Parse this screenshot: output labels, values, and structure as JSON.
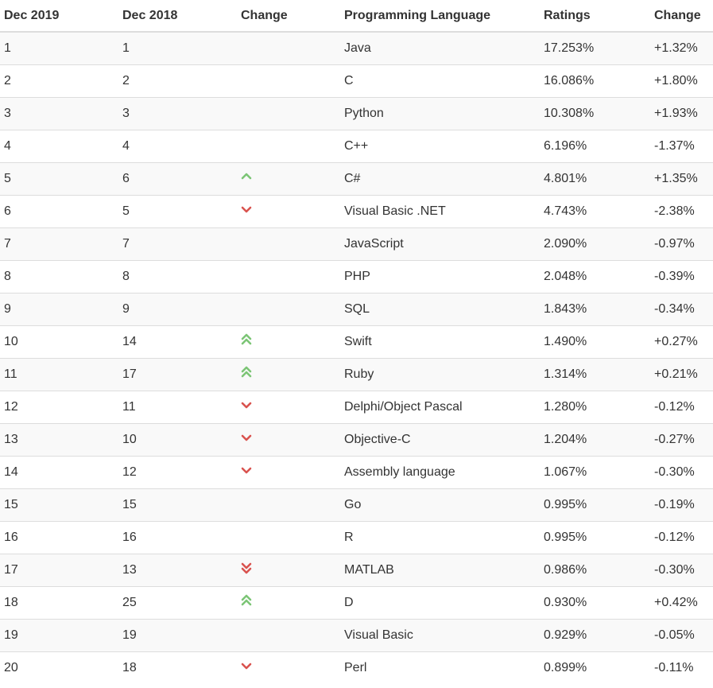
{
  "headers": [
    "Dec 2019",
    "Dec 2018",
    "Change",
    "Programming Language",
    "Ratings",
    "Change"
  ],
  "colors": {
    "up": "#7cc576",
    "down": "#d9534f",
    "row_alt": "#f9f9f9",
    "border": "#dddddd"
  },
  "rows": [
    {
      "rank2019": "1",
      "rank2018": "1",
      "trend": "none",
      "language": "Java",
      "rating": "17.253%",
      "change": "+1.32%"
    },
    {
      "rank2019": "2",
      "rank2018": "2",
      "trend": "none",
      "language": "C",
      "rating": "16.086%",
      "change": "+1.80%"
    },
    {
      "rank2019": "3",
      "rank2018": "3",
      "trend": "none",
      "language": "Python",
      "rating": "10.308%",
      "change": "+1.93%"
    },
    {
      "rank2019": "4",
      "rank2018": "4",
      "trend": "none",
      "language": "C++",
      "rating": "6.196%",
      "change": "-1.37%"
    },
    {
      "rank2019": "5",
      "rank2018": "6",
      "trend": "up",
      "language": "C#",
      "rating": "4.801%",
      "change": "+1.35%"
    },
    {
      "rank2019": "6",
      "rank2018": "5",
      "trend": "down",
      "language": "Visual Basic .NET",
      "rating": "4.743%",
      "change": "-2.38%"
    },
    {
      "rank2019": "7",
      "rank2018": "7",
      "trend": "none",
      "language": "JavaScript",
      "rating": "2.090%",
      "change": "-0.97%"
    },
    {
      "rank2019": "8",
      "rank2018": "8",
      "trend": "none",
      "language": "PHP",
      "rating": "2.048%",
      "change": "-0.39%"
    },
    {
      "rank2019": "9",
      "rank2018": "9",
      "trend": "none",
      "language": "SQL",
      "rating": "1.843%",
      "change": "-0.34%"
    },
    {
      "rank2019": "10",
      "rank2018": "14",
      "trend": "up2",
      "language": "Swift",
      "rating": "1.490%",
      "change": "+0.27%"
    },
    {
      "rank2019": "11",
      "rank2018": "17",
      "trend": "up2",
      "language": "Ruby",
      "rating": "1.314%",
      "change": "+0.21%"
    },
    {
      "rank2019": "12",
      "rank2018": "11",
      "trend": "down",
      "language": "Delphi/Object Pascal",
      "rating": "1.280%",
      "change": "-0.12%"
    },
    {
      "rank2019": "13",
      "rank2018": "10",
      "trend": "down",
      "language": "Objective-C",
      "rating": "1.204%",
      "change": "-0.27%"
    },
    {
      "rank2019": "14",
      "rank2018": "12",
      "trend": "down",
      "language": "Assembly language",
      "rating": "1.067%",
      "change": "-0.30%"
    },
    {
      "rank2019": "15",
      "rank2018": "15",
      "trend": "none",
      "language": "Go",
      "rating": "0.995%",
      "change": "-0.19%"
    },
    {
      "rank2019": "16",
      "rank2018": "16",
      "trend": "none",
      "language": "R",
      "rating": "0.995%",
      "change": "-0.12%"
    },
    {
      "rank2019": "17",
      "rank2018": "13",
      "trend": "down2",
      "language": "MATLAB",
      "rating": "0.986%",
      "change": "-0.30%"
    },
    {
      "rank2019": "18",
      "rank2018": "25",
      "trend": "up2",
      "language": "D",
      "rating": "0.930%",
      "change": "+0.42%"
    },
    {
      "rank2019": "19",
      "rank2018": "19",
      "trend": "none",
      "language": "Visual Basic",
      "rating": "0.929%",
      "change": "-0.05%"
    },
    {
      "rank2019": "20",
      "rank2018": "18",
      "trend": "down",
      "language": "Perl",
      "rating": "0.899%",
      "change": "-0.11%"
    }
  ]
}
